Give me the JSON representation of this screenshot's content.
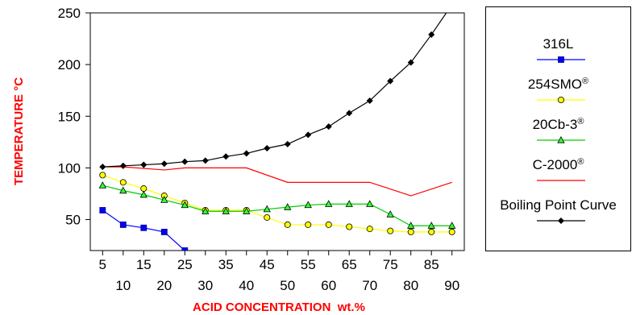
{
  "chart_data": {
    "type": "line",
    "xlabel": "ACID CONCENTRATION  wt.%",
    "ylabel": "TEMPERATURE  °C",
    "xlim": [
      2,
      93
    ],
    "ylim": [
      20,
      250
    ],
    "x_ticks_top_row": [
      "5",
      "15",
      "25",
      "35",
      "45",
      "55",
      "65",
      "75",
      "85"
    ],
    "x_ticks_bottom_row": [
      "10",
      "20",
      "30",
      "40",
      "50",
      "60",
      "70",
      "80",
      "90"
    ],
    "y_ticks": [
      "50",
      "100",
      "150",
      "200",
      "250"
    ],
    "axis_color": "#000000",
    "label_color": "#ff0000",
    "legend_position": "right",
    "series": [
      {
        "name": "316L",
        "sup": "",
        "color": "#0000ff",
        "fill": "#0000ff",
        "marker": "square",
        "x": [
          5,
          10,
          15,
          20,
          25
        ],
        "y": [
          59,
          45,
          42,
          38,
          20
        ]
      },
      {
        "name": "254SMO",
        "sup": "®",
        "color": "#ffff00",
        "fill": "#ffff00",
        "marker": "circle",
        "x": [
          5,
          10,
          15,
          20,
          25,
          30,
          35,
          40,
          45,
          50,
          55,
          60,
          65,
          70,
          75,
          80,
          85,
          90
        ],
        "y": [
          93,
          86,
          80,
          73,
          66,
          59,
          59,
          59,
          52,
          45,
          45,
          45,
          43,
          41,
          39,
          38,
          38,
          38
        ]
      },
      {
        "name": "20Cb-3",
        "sup": "®",
        "color": "#00cc00",
        "fill": "#33ff33",
        "marker": "triangle",
        "x": [
          5,
          10,
          15,
          20,
          25,
          30,
          35,
          40,
          45,
          50,
          55,
          60,
          65,
          70,
          75,
          80,
          85,
          90
        ],
        "y": [
          83,
          78,
          74,
          69,
          64,
          58,
          58,
          58,
          60,
          62,
          64,
          65,
          65,
          65,
          55,
          44,
          44,
          44
        ]
      },
      {
        "name": "C-2000",
        "sup": "®",
        "color": "#ff0000",
        "fill": "none",
        "marker": "none",
        "x": [
          5,
          10,
          20,
          25,
          40,
          50,
          70,
          80,
          90
        ],
        "y": [
          101,
          101,
          98,
          100,
          100,
          86,
          86,
          73,
          86
        ]
      },
      {
        "name": "Boiling Point Curve",
        "sup": "",
        "color": "#000000",
        "fill": "#000000",
        "marker": "diamond",
        "x": [
          5,
          10,
          15,
          20,
          25,
          30,
          35,
          40,
          45,
          50,
          55,
          60,
          65,
          70,
          75,
          80,
          85,
          90
        ],
        "y": [
          101,
          102,
          103,
          104,
          106,
          107,
          111,
          114,
          119,
          123,
          132,
          140,
          153,
          165,
          184,
          202,
          229,
          258
        ]
      }
    ]
  }
}
